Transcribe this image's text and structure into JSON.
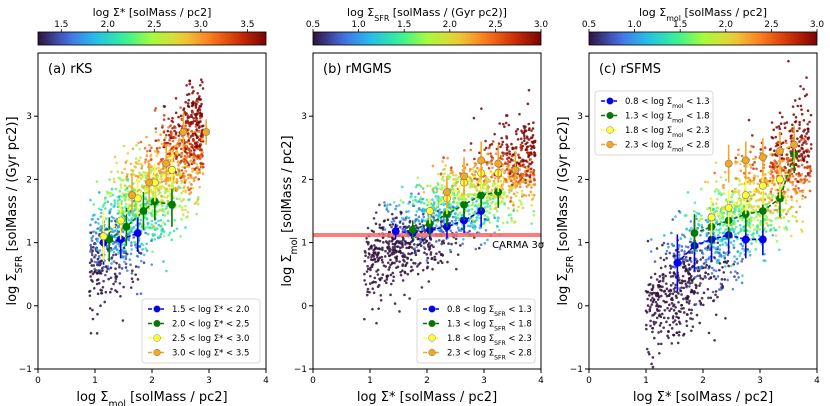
{
  "chart_data": [
    {
      "type": "scatter",
      "id": "rKS",
      "title": "(a) rKS",
      "xlabel": "log Σ_mol [solMass / pc2]",
      "ylabel": "log Σ_SFR [solMass / (Gyr pc2)]",
      "xlim": [
        0,
        4
      ],
      "ylim": [
        -1,
        4
      ],
      "xticks": [
        0,
        1,
        2,
        3,
        4
      ],
      "yticks": [
        -1,
        0,
        1,
        2,
        3
      ],
      "colorbar": {
        "label": "log Σ* [solMass / pc2]",
        "range": [
          1.25,
          3.7
        ],
        "ticks": [
          1.5,
          2.0,
          2.5,
          3.0,
          3.5
        ]
      },
      "cloud": {
        "x_center": 1.7,
        "y_center": 1.5,
        "slope": 1.0,
        "x_min": 0.9,
        "x_max": 2.9,
        "scatter_y": 0.45,
        "color_slope": 0.8,
        "color_base": 2.2
      },
      "legend_position": "lower-right",
      "series": [
        {
          "name": "1.5 < log Σ* < 2.0",
          "color": "#0000ee",
          "x": [
            1.15,
            1.45,
            1.75
          ],
          "y": [
            1.0,
            1.05,
            1.15
          ],
          "yerr": [
            0.35,
            0.3,
            0.3
          ]
        },
        {
          "name": "2.0 < log Σ* < 2.5",
          "color": "#007a00",
          "x": [
            1.25,
            1.55,
            1.85,
            2.05,
            2.35
          ],
          "y": [
            1.05,
            1.25,
            1.5,
            1.65,
            1.6
          ],
          "yerr": [
            0.35,
            0.3,
            0.3,
            0.3,
            0.35
          ]
        },
        {
          "name": "2.5 < log Σ* < 3.0",
          "color": "#ffff33",
          "x": [
            1.15,
            1.45,
            1.75,
            2.05,
            2.35
          ],
          "y": [
            1.1,
            1.35,
            1.7,
            1.95,
            2.15
          ],
          "yerr": [
            0.4,
            0.3,
            0.3,
            0.3,
            0.3
          ]
        },
        {
          "name": "3.0 < log Σ* < 3.5",
          "color": "#f5a623",
          "x": [
            1.65,
            1.95,
            2.25,
            2.55,
            2.95
          ],
          "y": [
            1.75,
            1.95,
            2.25,
            2.75,
            2.75
          ],
          "yerr": [
            0.3,
            0.3,
            0.3,
            0.3,
            0.2
          ]
        }
      ]
    },
    {
      "type": "scatter",
      "id": "rMGMS",
      "title": "(b) rMGMS",
      "xlabel": "log Σ* [solMass / pc2]",
      "ylabel": "log Σ_mol [solMass / pc2]",
      "xlim": [
        0,
        4
      ],
      "ylim": [
        -1,
        4
      ],
      "xticks": [
        0,
        1,
        2,
        3,
        4
      ],
      "yticks": [
        -1,
        0,
        1,
        2,
        3
      ],
      "colorbar": {
        "label": "log Σ_SFR [solMass / (Gyr pc2)]",
        "range": [
          0.5,
          3.0
        ],
        "ticks": [
          0.5,
          1.0,
          1.5,
          2.0,
          2.5,
          3.0
        ]
      },
      "cloud": {
        "x_center": 2.6,
        "y_center": 1.6,
        "slope": 0.55,
        "x_min": 0.9,
        "x_max": 3.9,
        "scatter_y": 0.35,
        "color_slope": 1.3,
        "color_base": 1.5
      },
      "hline": {
        "y": 1.12,
        "color": "#ff6666",
        "label": "CARMA 3σ"
      },
      "legend_position": "lower-right",
      "series": [
        {
          "name": "0.8 < log Σ_SFR < 1.3",
          "color": "#0000ee",
          "x": [
            1.45,
            1.75,
            2.05,
            2.35,
            2.65,
            2.95
          ],
          "y": [
            1.18,
            1.15,
            1.2,
            1.25,
            1.35,
            1.5
          ],
          "yerr": [
            0.12,
            0.12,
            0.15,
            0.18,
            0.2,
            0.25
          ]
        },
        {
          "name": "1.3 < log Σ_SFR < 1.8",
          "color": "#007a00",
          "x": [
            1.75,
            2.05,
            2.35,
            2.65,
            2.95,
            3.25
          ],
          "y": [
            1.2,
            1.3,
            1.45,
            1.6,
            1.75,
            1.8
          ],
          "yerr": [
            0.15,
            0.2,
            0.2,
            0.25,
            0.25,
            0.25
          ]
        },
        {
          "name": "1.8 < log Σ_SFR < 2.3",
          "color": "#ffff33",
          "x": [
            2.05,
            2.35,
            2.65,
            2.95,
            3.25
          ],
          "y": [
            1.5,
            1.7,
            1.95,
            2.1,
            2.1
          ],
          "yerr": [
            0.2,
            0.25,
            0.3,
            0.3,
            0.3
          ]
        },
        {
          "name": "2.3 < log Σ_SFR < 2.8",
          "color": "#f5a623",
          "x": [
            2.35,
            2.65,
            2.95,
            3.25,
            3.55
          ],
          "y": [
            1.8,
            2.05,
            2.3,
            2.25,
            2.15
          ],
          "yerr": [
            0.25,
            0.3,
            0.3,
            0.3,
            0.3
          ]
        }
      ]
    },
    {
      "type": "scatter",
      "id": "rSFMS",
      "title": "(c) rSFMS",
      "xlabel": "log Σ* [solMass / pc2]",
      "ylabel": "log Σ_SFR [solMass / (Gyr pc2)]",
      "xlim": [
        0,
        4
      ],
      "ylim": [
        -1,
        4
      ],
      "xticks": [
        0,
        1,
        2,
        3,
        4
      ],
      "yticks": [
        -1,
        0,
        1,
        2,
        3
      ],
      "colorbar": {
        "label": "log Σ_mol [solMass / pc2]",
        "range": [
          0.5,
          3.0
        ],
        "ticks": [
          0.5,
          1.0,
          1.5,
          2.0,
          2.5,
          3.0
        ]
      },
      "cloud": {
        "x_center": 2.5,
        "y_center": 1.25,
        "slope": 0.9,
        "x_min": 1.0,
        "x_max": 3.9,
        "scatter_y": 0.45,
        "color_slope": 0.9,
        "color_base": 1.4
      },
      "legend_position": "upper-left",
      "series": [
        {
          "name": "0.8 < log Σ_mol < 1.3",
          "color": "#0000ee",
          "x": [
            1.55,
            1.85,
            2.15,
            2.45,
            2.75,
            3.05
          ],
          "y": [
            0.68,
            0.95,
            1.05,
            1.12,
            1.05,
            1.05
          ],
          "yerr": [
            0.45,
            0.4,
            0.35,
            0.3,
            0.3,
            0.25
          ]
        },
        {
          "name": "1.3 < log Σ_mol < 1.8",
          "color": "#007a00",
          "x": [
            1.85,
            2.15,
            2.45,
            2.75,
            3.05,
            3.35,
            3.6
          ],
          "y": [
            1.15,
            1.25,
            1.35,
            1.45,
            1.5,
            1.7,
            2.4
          ],
          "yerr": [
            0.3,
            0.3,
            0.3,
            0.3,
            0.3,
            0.3,
            0.3
          ]
        },
        {
          "name": "1.8 < log Σ_mol < 2.3",
          "color": "#ffff33",
          "x": [
            2.15,
            2.45,
            2.75,
            3.05,
            3.35
          ],
          "y": [
            1.4,
            1.55,
            1.75,
            1.9,
            2.0
          ],
          "yerr": [
            0.3,
            0.3,
            0.3,
            0.3,
            0.3
          ]
        },
        {
          "name": "2.3 < log Σ_mol < 2.8",
          "color": "#f5a623",
          "x": [
            2.45,
            2.75,
            3.05,
            3.35,
            3.6
          ],
          "y": [
            2.25,
            2.3,
            2.35,
            2.45,
            2.55
          ],
          "yerr": [
            0.3,
            0.3,
            0.3,
            0.3,
            0.3
          ]
        }
      ]
    }
  ]
}
